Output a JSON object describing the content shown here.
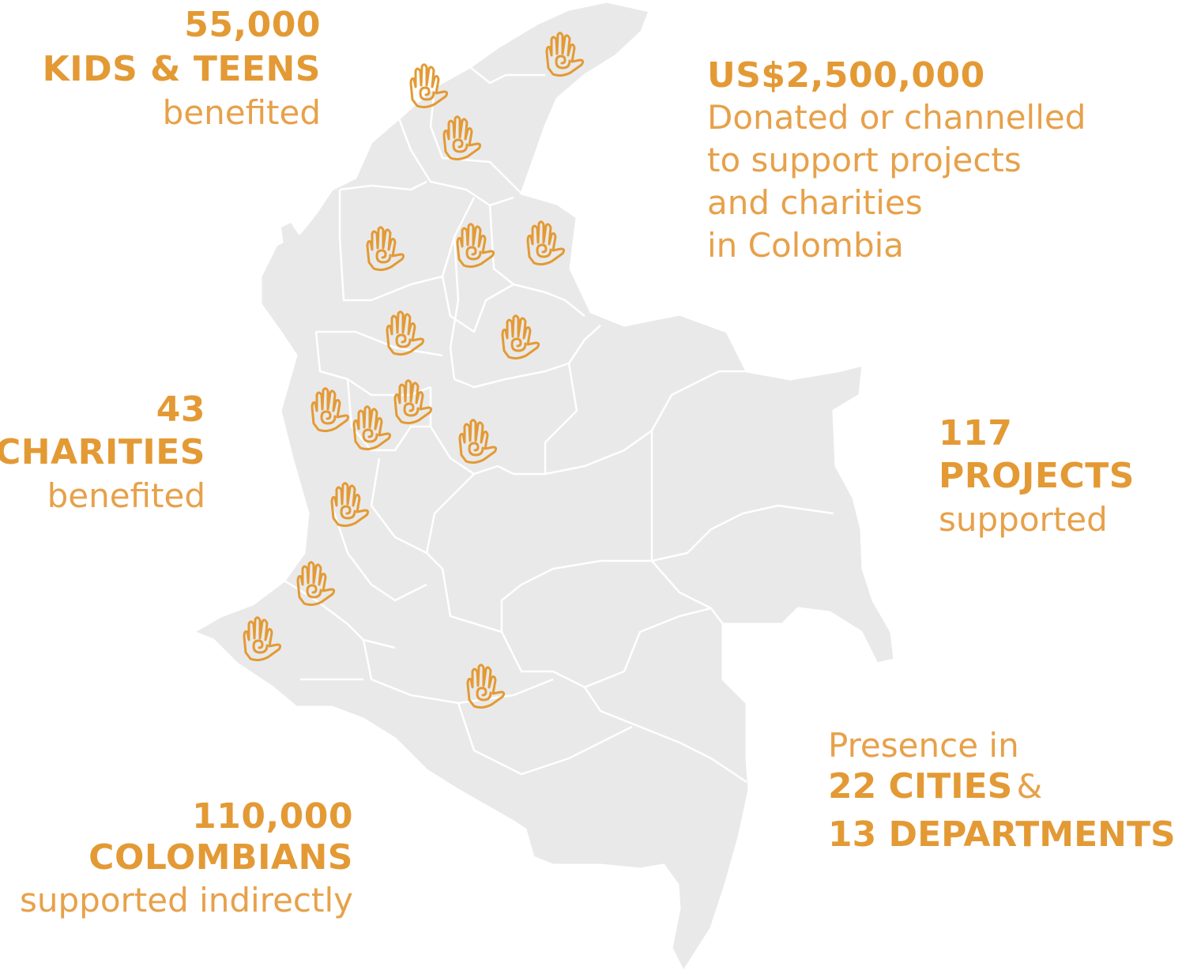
{
  "colors": {
    "accent": "#E39A35",
    "map_fill": "#E9E9E9",
    "map_border": "#FFFFFF"
  },
  "stats": {
    "kids": {
      "value": "55,000",
      "label": "KIDS & TEENS",
      "caption": "benefited"
    },
    "money": {
      "value": "US$2,500,000",
      "caption_lines": [
        "Donated or channelled",
        "to support projects",
        "and charities",
        "in Colombia"
      ]
    },
    "charities": {
      "value": "43",
      "label": "CHARITIES",
      "caption": "benefited"
    },
    "projects": {
      "value": "117",
      "label": "PROJECTS",
      "caption": "supported"
    },
    "presence": {
      "intro": "Presence in",
      "cities": "22 CITIES",
      "connector": "&",
      "departments": "13 DEPARTMENTS"
    },
    "colombians": {
      "value": "110,000",
      "label": "COLOMBIANS",
      "caption": "supported indirectly"
    }
  },
  "map": {
    "country": "Colombia",
    "marker_icon": "hand-spiral-icon",
    "marker_count": 17
  }
}
